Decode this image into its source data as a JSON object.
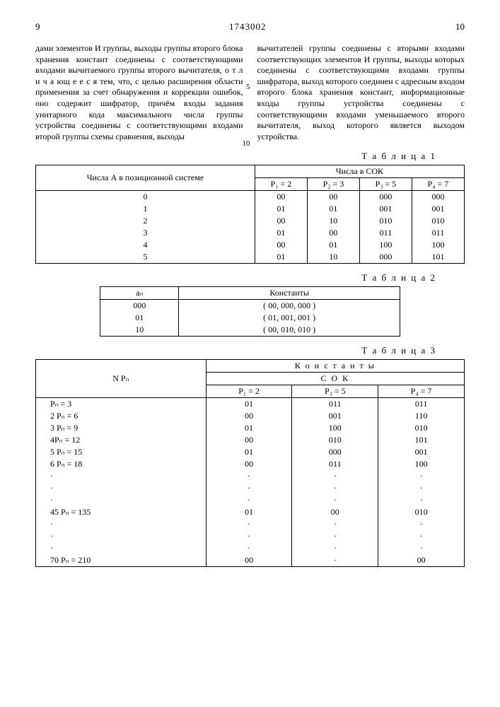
{
  "header": {
    "page_left": "9",
    "docnum": "1743002",
    "page_right": "10"
  },
  "paragraphs": {
    "left": "дами элементов И группы, выходы группы второго блока хранения констант соедине­ны с соответствующими входами вычитае­мого группы второго вычитателя, о т л и ч а ю­щ е е с я  тем, что, с целью расширения области применения за счет обнаружения и коррекции ошибок, оно содержит шифра­тор, причём входы задания унитарного кода максимального числа группы устройства со­единены с соответствующими входами вто­рой группы схемы сравнения, выходы",
    "right": "вычитателей группы соединены с вторыми входами соответствующих элементов И группы, выходы которых соединены с соот­ветствующими входами группы шифратора, выход которого соединен с адресным вхо­дом второго блока хранения констант, ин­формационные входы группы устройства соединены с соответствующими входами уменьшаемого второго вычитателя, выход которого является выходом устройства.",
    "mark5": "5",
    "mark10": "10"
  },
  "table1": {
    "caption": "Т а б л и ц а 1",
    "col_a_header": "Числа А в пози­ционной системе",
    "sok_header": "Числа в СОК",
    "cols": [
      "P₁ = 2",
      "P₂ = 3",
      "P₃ = 5",
      "P₄ = 7"
    ],
    "rows": [
      {
        "a": "0",
        "v": [
          "00",
          "00",
          "000",
          "000"
        ]
      },
      {
        "a": "1",
        "v": [
          "01",
          "01",
          "001",
          "001"
        ]
      },
      {
        "a": "2",
        "v": [
          "00",
          "10",
          "010",
          "010"
        ]
      },
      {
        "a": "3",
        "v": [
          "01",
          "00",
          "011",
          "011"
        ]
      },
      {
        "a": "4",
        "v": [
          "00",
          "01",
          "100",
          "100"
        ]
      },
      {
        "a": "5",
        "v": [
          "01",
          "10",
          "000",
          "101"
        ]
      }
    ]
  },
  "table2": {
    "caption": "Т а б л и ц а 2",
    "col_an": "aₙ",
    "col_k": "Константы",
    "rows": [
      {
        "a": "000",
        "k": "( 00, 000, 000 )"
      },
      {
        "a": "01",
        "k": "( 01, 001, 001 )"
      },
      {
        "a": "10",
        "k": "( 00, 010, 010 )"
      }
    ]
  },
  "table3": {
    "caption": "Т а б л и ц а 3",
    "col_n": "N  Pₙ",
    "k_header": "К о н с т а н т ы",
    "sok_header": "С О К",
    "cols": [
      "P₁ = 2",
      "P₃ = 5",
      "P₄ = 7"
    ],
    "rows": [
      {
        "n": "Pₙ = 3",
        "v": [
          "01",
          "011",
          "011"
        ]
      },
      {
        "n": "2 Pₙ = 6",
        "v": [
          "00",
          "001",
          "110"
        ]
      },
      {
        "n": "3 Pₙ = 9",
        "v": [
          "01",
          "100",
          "010"
        ]
      },
      {
        "n": "4Pₙ = 12",
        "v": [
          "00",
          "010",
          "101"
        ]
      },
      {
        "n": "5 Pₙ = 15",
        "v": [
          "01",
          "000",
          "001"
        ]
      },
      {
        "n": "6 Pₙ = 18",
        "v": [
          "00",
          "011",
          "100"
        ]
      },
      {
        "n": "·",
        "v": [
          "·",
          "·",
          "·"
        ]
      },
      {
        "n": "·",
        "v": [
          "·",
          "·",
          "·"
        ]
      },
      {
        "n": "·",
        "v": [
          "·",
          "·",
          "·"
        ]
      },
      {
        "n": "45 Pₙ = 135",
        "v": [
          "01",
          "00",
          "010"
        ]
      },
      {
        "n": "·",
        "v": [
          "·",
          "·",
          "·"
        ]
      },
      {
        "n": "·",
        "v": [
          "·",
          "·",
          "·"
        ]
      },
      {
        "n": "·",
        "v": [
          "·",
          "·",
          "·"
        ]
      },
      {
        "n": "70 Pₙ = 210",
        "v": [
          "00",
          "·",
          "00"
        ]
      }
    ]
  }
}
